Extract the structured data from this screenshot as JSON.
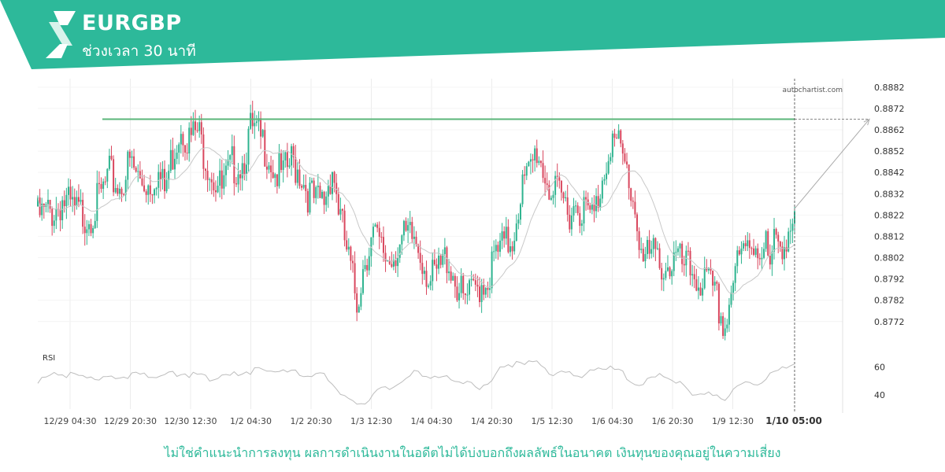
{
  "header": {
    "symbol": "EURGBP",
    "timeframe": "ช่วงเวลา 30 นาที",
    "logo_icon": "autochartist-logo-icon"
  },
  "watermark": "autochartist.com",
  "disclaimer": "ไม่ใช่คำแนะนำการลงทุน ผลการดำเนินงานในอดีตไม่ได้บ่งบอกถึงผลลัพธ์ในอนาคต เงินทุนของคุณอยู่ในความเสี่ยง",
  "colors": {
    "brand": "#2db99a",
    "up": "#2eb38f",
    "down": "#d9475e",
    "level": "#5bb67a",
    "ma": "#c8c8c8",
    "rsi": "#bdbdbd",
    "grid": "#ececec"
  },
  "chart_data": {
    "type": "candlestick",
    "ylim": [
      0.8766,
      0.8886
    ],
    "y_ticks": [
      "0.8882",
      "0.8872",
      "0.8862",
      "0.8852",
      "0.8842",
      "0.8832",
      "0.8822",
      "0.8812",
      "0.8802",
      "0.8792",
      "0.8782",
      "0.8772"
    ],
    "x_ticks": [
      "12/29 04:30",
      "12/29 20:30",
      "12/30 12:30",
      "1/2 04:30",
      "1/2 20:30",
      "1/3 12:30",
      "1/4 04:30",
      "1/4 20:30",
      "1/5 12:30",
      "1/6 04:30",
      "1/6 20:30",
      "1/9 12:30"
    ],
    "current_time_label": "1/10 05:00",
    "resistance_level": 0.8867,
    "forecast": {
      "from": 0.8825,
      "to": 0.8867
    },
    "close_path": [
      [
        0,
        0.8826
      ],
      [
        8,
        0.8829
      ],
      [
        12,
        0.8834
      ],
      [
        18,
        0.8828
      ],
      [
        24,
        0.8827
      ],
      [
        28,
        0.883
      ],
      [
        35,
        0.8845
      ],
      [
        40,
        0.884
      ],
      [
        45,
        0.8851
      ],
      [
        50,
        0.8843
      ],
      [
        55,
        0.8842
      ],
      [
        58,
        0.8848
      ],
      [
        62,
        0.8838
      ],
      [
        66,
        0.8856
      ],
      [
        70,
        0.887
      ],
      [
        74,
        0.8862
      ],
      [
        78,
        0.8866
      ],
      [
        82,
        0.8855
      ],
      [
        86,
        0.8845
      ],
      [
        90,
        0.8838
      ],
      [
        95,
        0.885
      ],
      [
        100,
        0.8852
      ],
      [
        104,
        0.8866
      ],
      [
        108,
        0.8863
      ],
      [
        112,
        0.8858
      ],
      [
        116,
        0.8847
      ],
      [
        120,
        0.8845
      ],
      [
        124,
        0.8852
      ],
      [
        128,
        0.8848
      ],
      [
        132,
        0.8838
      ],
      [
        136,
        0.8832
      ],
      [
        140,
        0.8834
      ],
      [
        144,
        0.885
      ],
      [
        148,
        0.8825
      ],
      [
        152,
        0.8805
      ],
      [
        156,
        0.8786
      ],
      [
        160,
        0.8808
      ],
      [
        164,
        0.8817
      ],
      [
        168,
        0.881
      ],
      [
        172,
        0.8806
      ],
      [
        176,
        0.8813
      ],
      [
        180,
        0.8815
      ],
      [
        184,
        0.8816
      ],
      [
        188,
        0.8808
      ],
      [
        192,
        0.8795
      ],
      [
        196,
        0.88
      ],
      [
        200,
        0.8808
      ],
      [
        204,
        0.8797
      ],
      [
        208,
        0.8786
      ],
      [
        212,
        0.8789
      ],
      [
        216,
        0.8795
      ],
      [
        220,
        0.8797
      ],
      [
        224,
        0.8808
      ],
      [
        228,
        0.8812
      ],
      [
        232,
        0.8816
      ],
      [
        236,
        0.8838
      ],
      [
        240,
        0.8845
      ],
      [
        244,
        0.8858
      ],
      [
        248,
        0.8846
      ],
      [
        252,
        0.8836
      ],
      [
        256,
        0.8834
      ],
      [
        260,
        0.883
      ],
      [
        264,
        0.8833
      ],
      [
        268,
        0.8828
      ],
      [
        272,
        0.8826
      ],
      [
        276,
        0.8845
      ],
      [
        280,
        0.8863
      ],
      [
        284,
        0.8858
      ],
      [
        288,
        0.8847
      ],
      [
        292,
        0.883
      ],
      [
        296,
        0.8805
      ],
      [
        300,
        0.8808
      ],
      [
        304,
        0.8805
      ],
      [
        308,
        0.8803
      ],
      [
        312,
        0.8806
      ],
      [
        316,
        0.8802
      ],
      [
        320,
        0.88
      ],
      [
        324,
        0.8796
      ],
      [
        328,
        0.8794
      ],
      [
        332,
        0.8786
      ],
      [
        336,
        0.8774
      ],
      [
        340,
        0.8798
      ],
      [
        344,
        0.8806
      ],
      [
        348,
        0.8815
      ],
      [
        352,
        0.8813
      ],
      [
        356,
        0.8812
      ],
      [
        358,
        0.88
      ],
      [
        360,
        0.8812
      ],
      [
        364,
        0.8815
      ],
      [
        368,
        0.8822
      ],
      [
        370,
        0.8825
      ]
    ],
    "rsi": {
      "label": "RSI",
      "ticks": [
        "60",
        "40"
      ],
      "ylim": [
        30,
        72
      ],
      "path": [
        [
          0,
          51
        ],
        [
          10,
          56
        ],
        [
          20,
          55
        ],
        [
          30,
          54
        ],
        [
          40,
          55
        ],
        [
          50,
          56
        ],
        [
          60,
          55
        ],
        [
          70,
          57
        ],
        [
          80,
          54
        ],
        [
          90,
          53
        ],
        [
          100,
          58
        ],
        [
          110,
          59
        ],
        [
          120,
          58
        ],
        [
          130,
          56
        ],
        [
          140,
          55
        ],
        [
          145,
          48
        ],
        [
          150,
          40
        ],
        [
          155,
          34
        ],
        [
          160,
          37
        ],
        [
          165,
          43
        ],
        [
          170,
          46
        ],
        [
          175,
          49
        ],
        [
          180,
          52
        ],
        [
          185,
          58
        ],
        [
          190,
          56
        ],
        [
          195,
          52
        ],
        [
          200,
          54
        ],
        [
          205,
          52
        ],
        [
          210,
          50
        ],
        [
          215,
          46
        ],
        [
          220,
          50
        ],
        [
          225,
          58
        ],
        [
          230,
          62
        ],
        [
          235,
          66
        ],
        [
          240,
          64
        ],
        [
          245,
          65
        ],
        [
          250,
          58
        ],
        [
          255,
          56
        ],
        [
          260,
          57
        ],
        [
          265,
          55
        ],
        [
          270,
          57
        ],
        [
          275,
          60
        ],
        [
          280,
          62
        ],
        [
          285,
          58
        ],
        [
          290,
          48
        ],
        [
          295,
          50
        ],
        [
          300,
          52
        ],
        [
          305,
          55
        ],
        [
          310,
          52
        ],
        [
          315,
          48
        ],
        [
          320,
          42
        ],
        [
          325,
          44
        ],
        [
          330,
          40
        ],
        [
          335,
          38
        ],
        [
          340,
          46
        ],
        [
          345,
          48
        ],
        [
          350,
          50
        ],
        [
          355,
          52
        ],
        [
          360,
          56
        ],
        [
          365,
          62
        ],
        [
          370,
          64
        ]
      ]
    }
  }
}
